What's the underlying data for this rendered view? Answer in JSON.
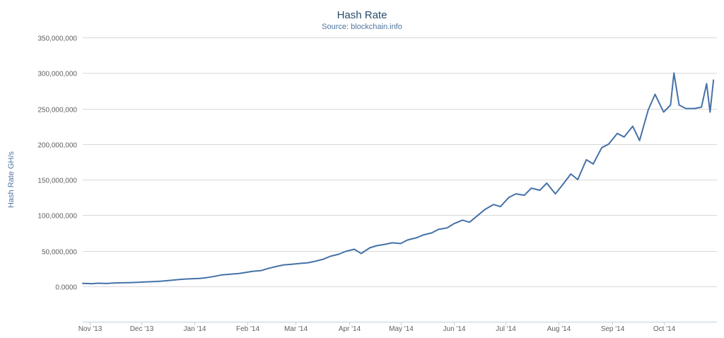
{
  "chart_data": {
    "type": "line",
    "title": "Hash Rate",
    "subtitle": "Source: blockchain.info",
    "ylabel": "Hash Rate GH/s",
    "xlabel": "",
    "ylim": [
      -50000000,
      350000000
    ],
    "y_ticks": [
      0,
      50000000,
      100000000,
      150000000,
      200000000,
      250000000,
      300000000,
      350000000
    ],
    "y_tick_labels": [
      "0.0000",
      "50,000,000",
      "100,000,000",
      "150,000,000",
      "200,000,000",
      "250,000,000",
      "300,000,000",
      "350,000,000"
    ],
    "x_tick_labels": [
      "Nov '13",
      "Dec '13",
      "Jan '14",
      "Feb '14",
      "Mar '14",
      "Apr '14",
      "May '14",
      "Jun '14",
      "Jul '14",
      "Aug '14",
      "Sep '14",
      "Oct '14"
    ],
    "x_tick_dates": [
      "2013-11-01",
      "2013-12-01",
      "2014-01-01",
      "2014-02-01",
      "2014-03-01",
      "2014-04-01",
      "2014-05-01",
      "2014-06-01",
      "2014-07-01",
      "2014-08-01",
      "2014-09-01",
      "2014-10-01"
    ],
    "xlim": [
      "2013-10-28",
      "2014-11-01"
    ],
    "grid": true,
    "legend": "none",
    "colors": {
      "series": "#4572a7",
      "grid": "#d8d8d8",
      "title": "#274b6d",
      "subtitle": "#4d759e"
    },
    "series": [
      {
        "x": [
          "2013-10-28",
          "2013-11-02",
          "2013-11-06",
          "2013-11-11",
          "2013-11-15",
          "2013-11-20",
          "2013-11-24",
          "2013-11-29",
          "2013-12-03",
          "2013-12-08",
          "2013-12-12",
          "2013-12-17",
          "2013-12-21",
          "2013-12-26",
          "2013-12-30",
          "2014-01-04",
          "2014-01-08",
          "2014-01-13",
          "2014-01-17",
          "2014-01-22",
          "2014-01-27",
          "2014-01-31",
          "2014-02-04",
          "2014-02-09",
          "2014-02-13",
          "2014-02-18",
          "2014-02-22",
          "2014-02-27",
          "2014-03-03",
          "2014-03-08",
          "2014-03-12",
          "2014-03-17",
          "2014-03-21",
          "2014-03-26",
          "2014-03-30",
          "2014-04-04",
          "2014-04-08",
          "2014-04-13",
          "2014-04-17",
          "2014-04-22",
          "2014-04-26",
          "2014-05-01",
          "2014-05-05",
          "2014-05-10",
          "2014-05-14",
          "2014-05-19",
          "2014-05-23",
          "2014-05-28",
          "2014-06-01",
          "2014-06-06",
          "2014-06-10",
          "2014-06-15",
          "2014-06-19",
          "2014-06-24",
          "2014-06-28",
          "2014-07-03",
          "2014-07-07",
          "2014-07-12",
          "2014-07-16",
          "2014-07-21",
          "2014-07-25",
          "2014-07-30",
          "2014-08-03",
          "2014-08-08",
          "2014-08-12",
          "2014-08-17",
          "2014-08-21",
          "2014-08-26",
          "2014-08-30",
          "2014-09-04",
          "2014-09-08",
          "2014-09-13",
          "2014-09-17",
          "2014-09-22",
          "2014-09-26",
          "2014-10-01",
          "2014-10-05",
          "2014-10-07",
          "2014-10-10",
          "2014-10-14",
          "2014-10-19",
          "2014-10-23",
          "2014-10-26",
          "2014-10-28",
          "2014-10-30"
        ],
        "y": [
          4000000,
          3500000,
          4200000,
          3800000,
          4500000,
          4800000,
          5000000,
          5500000,
          6000000,
          6500000,
          7000000,
          8000000,
          9000000,
          10000000,
          10500000,
          11000000,
          12000000,
          14000000,
          16000000,
          17000000,
          18000000,
          19500000,
          21000000,
          22000000,
          25000000,
          28000000,
          30000000,
          31000000,
          32000000,
          33000000,
          35000000,
          38000000,
          42000000,
          45000000,
          49000000,
          52000000,
          46000000,
          54000000,
          57000000,
          59000000,
          61000000,
          60000000,
          65000000,
          68000000,
          72000000,
          75000000,
          80000000,
          82000000,
          88000000,
          93000000,
          90000000,
          100000000,
          108000000,
          115000000,
          112000000,
          125000000,
          130000000,
          128000000,
          138000000,
          135000000,
          145000000,
          130000000,
          142000000,
          158000000,
          150000000,
          178000000,
          172000000,
          195000000,
          200000000,
          215000000,
          210000000,
          225000000,
          205000000,
          248000000,
          270000000,
          245000000,
          255000000,
          300000000,
          255000000,
          250000000,
          250000000,
          252000000,
          285000000,
          245000000,
          290000000
        ]
      }
    ]
  }
}
